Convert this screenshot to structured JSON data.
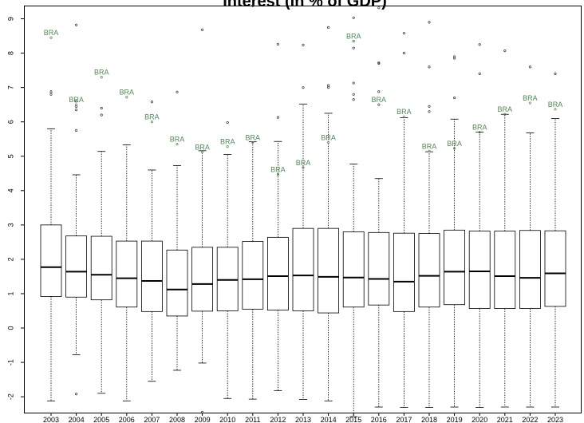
{
  "chart_data": {
    "type": "boxplot",
    "title": "Interest (in % of GDP)",
    "xlabel": "",
    "ylabel": "",
    "ylim": [
      -2.5,
      9.4
    ],
    "yticks": [
      -2,
      -1,
      0,
      1,
      2,
      3,
      4,
      5,
      6,
      7,
      8,
      9
    ],
    "grid": false,
    "legend": "none",
    "colors": {
      "box": "#000000",
      "highlight": "#4f8a52"
    },
    "categories": [
      "2003",
      "2004",
      "2005",
      "2006",
      "2007",
      "2008",
      "2009",
      "2010",
      "2011",
      "2012",
      "2013",
      "2014",
      "2015",
      "2016",
      "2017",
      "2018",
      "2019",
      "2020",
      "2021",
      "2022",
      "2023"
    ],
    "boxes": [
      {
        "year": "2003",
        "whisker_low": -2.12,
        "q1": 0.92,
        "median": 1.77,
        "q3": 3.0,
        "whisker_high": 5.8,
        "outliers": [
          6.8,
          6.88
        ]
      },
      {
        "year": "2004",
        "whisker_low": -0.78,
        "q1": 0.9,
        "median": 1.64,
        "q3": 2.68,
        "whisker_high": 4.46,
        "outliers": [
          -1.92,
          5.75,
          6.35,
          6.45,
          6.6,
          8.82
        ]
      },
      {
        "year": "2005",
        "whisker_low": -1.9,
        "q1": 0.82,
        "median": 1.55,
        "q3": 2.67,
        "whisker_high": 5.14,
        "outliers": [
          6.2,
          6.4
        ]
      },
      {
        "year": "2006",
        "whisker_low": -2.12,
        "q1": 0.61,
        "median": 1.45,
        "q3": 2.53,
        "whisker_high": 5.33,
        "outliers": []
      },
      {
        "year": "2007",
        "whisker_low": -1.55,
        "q1": 0.48,
        "median": 1.37,
        "q3": 2.53,
        "whisker_high": 4.6,
        "outliers": [
          6.58
        ]
      },
      {
        "year": "2008",
        "whisker_low": -1.23,
        "q1": 0.35,
        "median": 1.12,
        "q3": 2.27,
        "whisker_high": 4.73,
        "outliers": [
          6.87
        ]
      },
      {
        "year": "2009",
        "whisker_low": -1.02,
        "q1": 0.49,
        "median": 1.28,
        "q3": 2.35,
        "whisker_high": 5.16,
        "outliers": [
          -2.45,
          8.68
        ]
      },
      {
        "year": "2010",
        "whisker_low": -2.05,
        "q1": 0.5,
        "median": 1.4,
        "q3": 2.35,
        "whisker_high": 5.05,
        "outliers": [
          5.98
        ]
      },
      {
        "year": "2011",
        "whisker_low": -2.07,
        "q1": 0.55,
        "median": 1.42,
        "q3": 2.52,
        "whisker_high": 5.42,
        "outliers": [
          9.38
        ]
      },
      {
        "year": "2012",
        "whisker_low": -1.82,
        "q1": 0.52,
        "median": 1.51,
        "q3": 2.64,
        "whisker_high": 5.43,
        "outliers": [
          6.13,
          8.26
        ]
      },
      {
        "year": "2013",
        "whisker_low": -2.08,
        "q1": 0.5,
        "median": 1.53,
        "q3": 2.9,
        "whisker_high": 6.52,
        "outliers": [
          7.0,
          8.24
        ]
      },
      {
        "year": "2014",
        "whisker_low": -2.12,
        "q1": 0.44,
        "median": 1.49,
        "q3": 2.9,
        "whisker_high": 6.25,
        "outliers": [
          7.0,
          7.06,
          8.75
        ]
      },
      {
        "year": "2015",
        "whisker_low": -2.58,
        "q1": 0.61,
        "median": 1.47,
        "q3": 2.8,
        "whisker_high": 4.77,
        "outliers": [
          6.65,
          6.8,
          7.13,
          8.15,
          8.35,
          9.03
        ]
      },
      {
        "year": "2016",
        "whisker_low": -2.3,
        "q1": 0.67,
        "median": 1.43,
        "q3": 2.78,
        "whisker_high": 4.35,
        "outliers": [
          6.5,
          6.88,
          7.7,
          7.72,
          9.32
        ]
      },
      {
        "year": "2017",
        "whisker_low": -2.31,
        "q1": 0.48,
        "median": 1.35,
        "q3": 2.76,
        "whisker_high": 6.12,
        "outliers": [
          8.0,
          8.58
        ]
      },
      {
        "year": "2018",
        "whisker_low": -2.31,
        "q1": 0.61,
        "median": 1.52,
        "q3": 2.75,
        "whisker_high": 5.13,
        "outliers": [
          6.3,
          6.45,
          7.6,
          8.9
        ]
      },
      {
        "year": "2019",
        "whisker_low": -2.3,
        "q1": 0.68,
        "median": 1.64,
        "q3": 2.85,
        "whisker_high": 6.08,
        "outliers": [
          6.7,
          7.85,
          7.9
        ]
      },
      {
        "year": "2020",
        "whisker_low": -2.31,
        "q1": 0.57,
        "median": 1.65,
        "q3": 2.82,
        "whisker_high": 5.7,
        "outliers": [
          7.4,
          8.25
        ]
      },
      {
        "year": "2021",
        "whisker_low": -2.3,
        "q1": 0.57,
        "median": 1.51,
        "q3": 2.82,
        "whisker_high": 6.22,
        "outliers": [
          8.07
        ]
      },
      {
        "year": "2022",
        "whisker_low": -2.3,
        "q1": 0.57,
        "median": 1.46,
        "q3": 2.84,
        "whisker_high": 5.68,
        "outliers": [
          7.6
        ]
      },
      {
        "year": "2023",
        "whisker_low": -2.3,
        "q1": 0.63,
        "median": 1.59,
        "q3": 2.83,
        "whisker_high": 6.1,
        "outliers": [
          7.4
        ]
      }
    ],
    "annotations": [
      {
        "label": "BRA",
        "year": "2003",
        "value": 8.45
      },
      {
        "label": "BRA",
        "year": "2004",
        "value": 6.5
      },
      {
        "label": "BRA",
        "year": "2005",
        "value": 7.3
      },
      {
        "label": "BRA",
        "year": "2006",
        "value": 6.72
      },
      {
        "label": "BRA",
        "year": "2007",
        "value": 6.0
      },
      {
        "label": "BRA",
        "year": "2008",
        "value": 5.35
      },
      {
        "label": "BRA",
        "year": "2009",
        "value": 5.12
      },
      {
        "label": "BRA",
        "year": "2010",
        "value": 5.28
      },
      {
        "label": "BRA",
        "year": "2011",
        "value": 5.4
      },
      {
        "label": "BRA",
        "year": "2012",
        "value": 4.47
      },
      {
        "label": "BRA",
        "year": "2013",
        "value": 4.67
      },
      {
        "label": "BRA",
        "year": "2014",
        "value": 5.4
      },
      {
        "label": "BRA",
        "year": "2015",
        "value": 8.35
      },
      {
        "label": "BRA",
        "year": "2016",
        "value": 6.5
      },
      {
        "label": "BRA",
        "year": "2017",
        "value": 6.15
      },
      {
        "label": "BRA",
        "year": "2018",
        "value": 5.15
      },
      {
        "label": "BRA",
        "year": "2019",
        "value": 5.23
      },
      {
        "label": "BRA",
        "year": "2020",
        "value": 5.7
      },
      {
        "label": "BRA",
        "year": "2021",
        "value": 6.22
      },
      {
        "label": "BRA",
        "year": "2022",
        "value": 6.55
      },
      {
        "label": "BRA",
        "year": "2023",
        "value": 6.37
      }
    ]
  }
}
